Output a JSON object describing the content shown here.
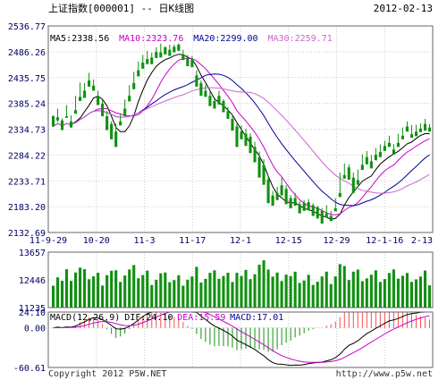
{
  "header": {
    "title": "上证指数[000001] -- 日K线图",
    "date": "2012-02-13"
  },
  "footer": {
    "copyright": "Copyright 2012 P5W.NET",
    "url": "http://www.p5w.net"
  },
  "colors": {
    "up": "#f05050",
    "down": "#109010",
    "ma5": "#000000",
    "ma10": "#cc00cc",
    "ma20": "#000099",
    "ma30": "#cc66cc",
    "grid": "#cccccc",
    "border": "#666666",
    "axis_text": "#000066"
  },
  "chart_data": [
    {
      "type": "candlestick",
      "title": "上证指数[000001] -- 日K线图",
      "ylim": [
        2132.69,
        2536.77
      ],
      "y_ticks": [
        "2536.77",
        "2486.26",
        "2435.75",
        "2385.24",
        "2334.73",
        "2284.22",
        "2233.71",
        "2183.20",
        "2132.69"
      ],
      "x_ticks": [
        "11-9-29",
        "10-20",
        "11-3",
        "11-17",
        "12-1",
        "12-15",
        "12-29",
        "12-1-16",
        "2-13"
      ],
      "legend": [
        {
          "label": "MA5:2338.56",
          "color": "#000000"
        },
        {
          "label": "MA10:2323.76",
          "color": "#cc00cc"
        },
        {
          "label": "MA20:2299.00",
          "color": "#000099"
        },
        {
          "label": "MA30:2259.71",
          "color": "#cc66cc"
        }
      ],
      "candles": [
        [
          2360,
          2362,
          2346,
          2340
        ],
        [
          2358,
          2375,
          2349,
          2352
        ],
        [
          2352,
          2356,
          2350,
          2333
        ],
        [
          2360,
          2382,
          2358,
          2357
        ],
        [
          2350,
          2362,
          2338,
          2338
        ],
        [
          2372,
          2400,
          2366,
          2365
        ],
        [
          2398,
          2426,
          2391,
          2390
        ],
        [
          2410,
          2425,
          2405,
          2396
        ],
        [
          2430,
          2445,
          2421,
          2418
        ],
        [
          2420,
          2432,
          2412,
          2410
        ],
        [
          2400,
          2410,
          2392,
          2382
        ],
        [
          2385,
          2393,
          2378,
          2360
        ],
        [
          2360,
          2370,
          2340,
          2333
        ],
        [
          2345,
          2350,
          2320,
          2315
        ],
        [
          2330,
          2346,
          2326,
          2300
        ],
        [
          2350,
          2365,
          2345,
          2342
        ],
        [
          2375,
          2393,
          2368,
          2360
        ],
        [
          2400,
          2421,
          2392,
          2389
        ],
        [
          2425,
          2447,
          2418,
          2413
        ],
        [
          2450,
          2467,
          2442,
          2438
        ],
        [
          2465,
          2480,
          2458,
          2453
        ],
        [
          2472,
          2488,
          2466,
          2462
        ],
        [
          2475,
          2485,
          2470,
          2462
        ],
        [
          2486,
          2495,
          2478,
          2474
        ],
        [
          2485,
          2502,
          2480,
          2475
        ],
        [
          2495,
          2497,
          2484,
          2481
        ],
        [
          2490,
          2500,
          2482,
          2478
        ],
        [
          2496,
          2500,
          2488,
          2485
        ],
        [
          2500,
          2503,
          2490,
          2488
        ],
        [
          2480,
          2490,
          2474,
          2470
        ],
        [
          2474,
          2480,
          2460,
          2458
        ],
        [
          2470,
          2478,
          2461,
          2456
        ],
        [
          2440,
          2450,
          2420,
          2418
        ],
        [
          2425,
          2430,
          2410,
          2400
        ],
        [
          2410,
          2422,
          2404,
          2398
        ],
        [
          2400,
          2410,
          2388,
          2380
        ],
        [
          2390,
          2397,
          2380,
          2375
        ],
        [
          2400,
          2410,
          2385,
          2383
        ],
        [
          2390,
          2393,
          2372,
          2368
        ],
        [
          2370,
          2378,
          2360,
          2355
        ],
        [
          2355,
          2364,
          2340,
          2332
        ],
        [
          2340,
          2346,
          2310,
          2300
        ],
        [
          2330,
          2342,
          2325,
          2315
        ],
        [
          2326,
          2336,
          2315,
          2302
        ],
        [
          2320,
          2327,
          2300,
          2288
        ],
        [
          2300,
          2310,
          2282,
          2270
        ],
        [
          2280,
          2291,
          2250,
          2240
        ],
        [
          2265,
          2276,
          2235,
          2226
        ],
        [
          2236,
          2245,
          2198,
          2190
        ],
        [
          2205,
          2214,
          2196,
          2185
        ],
        [
          2210,
          2222,
          2205,
          2196
        ],
        [
          2225,
          2240,
          2215,
          2205
        ],
        [
          2218,
          2225,
          2195,
          2188
        ],
        [
          2200,
          2206,
          2191,
          2180
        ],
        [
          2200,
          2210,
          2195,
          2185
        ],
        [
          2188,
          2194,
          2178,
          2170
        ],
        [
          2190,
          2196,
          2185,
          2175
        ],
        [
          2192,
          2198,
          2184,
          2176
        ],
        [
          2186,
          2190,
          2172,
          2165
        ],
        [
          2182,
          2185,
          2170,
          2160
        ],
        [
          2175,
          2180,
          2163,
          2150
        ],
        [
          2170,
          2186,
          2168,
          2162
        ],
        [
          2165,
          2175,
          2159,
          2155
        ],
        [
          2180,
          2200,
          2176,
          2174
        ],
        [
          2210,
          2250,
          2206,
          2202
        ],
        [
          2245,
          2268,
          2240,
          2238
        ],
        [
          2260,
          2266,
          2244,
          2236
        ],
        [
          2240,
          2250,
          2218,
          2210
        ],
        [
          2235,
          2256,
          2230,
          2226
        ],
        [
          2265,
          2286,
          2260,
          2255
        ],
        [
          2280,
          2292,
          2270,
          2266
        ],
        [
          2272,
          2284,
          2264,
          2258
        ],
        [
          2285,
          2298,
          2278,
          2274
        ],
        [
          2290,
          2305,
          2285,
          2280
        ],
        [
          2302,
          2312,
          2296,
          2292
        ],
        [
          2308,
          2322,
          2302,
          2300
        ],
        [
          2295,
          2306,
          2288,
          2285
        ],
        [
          2308,
          2326,
          2302,
          2300
        ],
        [
          2322,
          2338,
          2318,
          2315
        ],
        [
          2340,
          2350,
          2334,
          2330
        ],
        [
          2325,
          2343,
          2320,
          2318
        ],
        [
          2330,
          2343,
          2325,
          2321
        ],
        [
          2336,
          2346,
          2332,
          2329
        ],
        [
          2345,
          2355,
          2337,
          2332
        ],
        [
          2338,
          2345,
          2335,
          2330
        ]
      ]
    },
    {
      "type": "bar",
      "title": "",
      "ylim": [
        11235,
        13657
      ],
      "y_ticks": [
        "13657",
        "12446",
        "11235"
      ]
    },
    {
      "type": "bar",
      "title": "",
      "ylim": [
        -60.61,
        24.1
      ],
      "y_ticks": [
        "24.10",
        "0.00",
        "-60.61"
      ],
      "legend": [
        {
          "label": "MACD(12,26,9)",
          "color": "#000000"
        },
        {
          "label": "DIF:24.10",
          "color": "#000000"
        },
        {
          "label": "DEA:15.59",
          "color": "#cc00cc"
        },
        {
          "label": "MACD:17.01",
          "color": "#000099"
        }
      ]
    }
  ]
}
